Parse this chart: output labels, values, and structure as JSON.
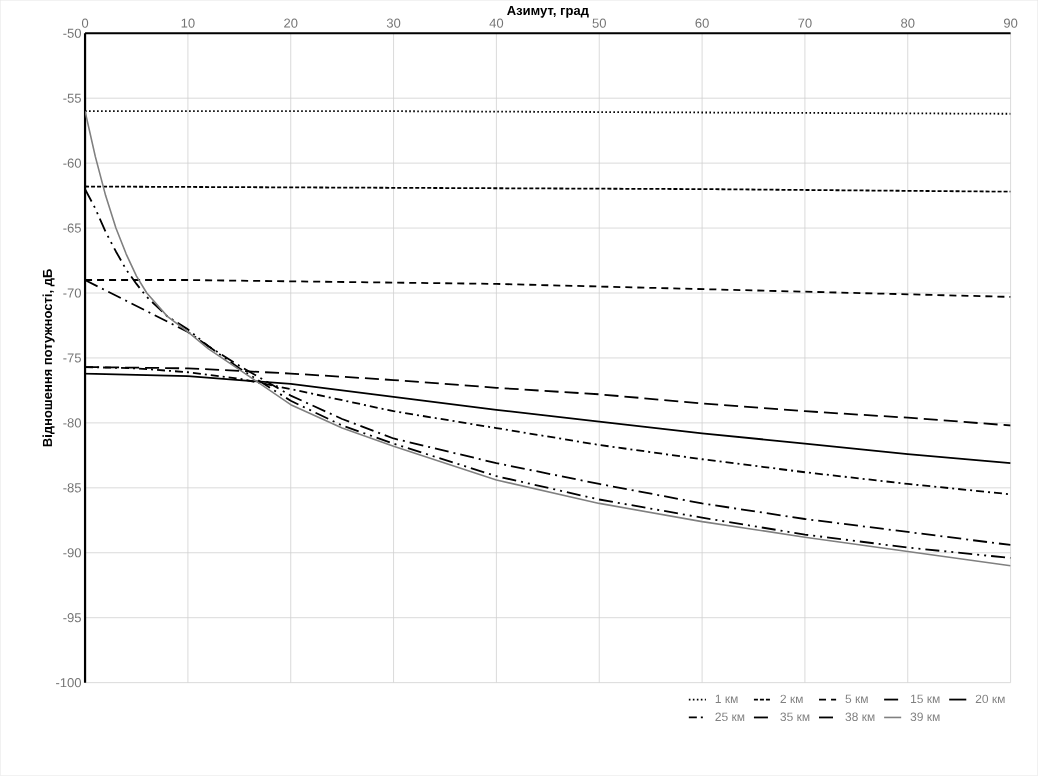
{
  "chart_data": {
    "type": "line",
    "xlabel": "Азимут, град",
    "ylabel": "Відношення потужності, дБ",
    "xlim": [
      0,
      90
    ],
    "ylim": [
      -100,
      -50
    ],
    "xticks": [
      0,
      10,
      20,
      30,
      40,
      50,
      60,
      70,
      80,
      90
    ],
    "yticks": [
      -100,
      -95,
      -90,
      -85,
      -80,
      -75,
      -70,
      -65,
      -60,
      -55,
      -50
    ],
    "grid": true,
    "legend": "bottom",
    "marker": "none",
    "series": [
      {
        "name": "1 км",
        "color": "#000000",
        "line_style": "dotted",
        "x": [
          0,
          30,
          60,
          90
        ],
        "values": [
          -56.0,
          -56.0,
          -56.1,
          -56.2
        ]
      },
      {
        "name": "2 км",
        "color": "#000000",
        "line_style": "dashed",
        "x": [
          0,
          30,
          60,
          90
        ],
        "values": [
          -61.8,
          -61.9,
          -62.0,
          -62.2
        ]
      },
      {
        "name": "5 км",
        "color": "#000000",
        "line_style": "mediumdash",
        "x": [
          0,
          10,
          20,
          30,
          40,
          50,
          60,
          70,
          80,
          90
        ],
        "values": [
          -69.0,
          -69.0,
          -69.1,
          -69.2,
          -69.3,
          -69.5,
          -69.7,
          -69.9,
          -70.1,
          -70.3
        ]
      },
      {
        "name": "15 км",
        "color": "#000000",
        "line_style": "longdash",
        "x": [
          0,
          10,
          20,
          30,
          40,
          50,
          60,
          70,
          80,
          90
        ],
        "values": [
          -75.7,
          -75.8,
          -76.2,
          -76.7,
          -77.3,
          -77.8,
          -78.5,
          -79.1,
          -79.6,
          -80.2
        ]
      },
      {
        "name": "20 км",
        "color": "#000000",
        "line_style": "solid",
        "x": [
          0,
          10,
          15,
          20,
          30,
          40,
          50,
          60,
          70,
          80,
          90
        ],
        "values": [
          -76.2,
          -76.4,
          -76.7,
          -77.0,
          -78.0,
          -79.0,
          -79.9,
          -80.8,
          -81.6,
          -82.4,
          -83.1
        ]
      },
      {
        "name": "25 км",
        "color": "#000000",
        "line_style": "dashdot",
        "x": [
          0,
          5,
          10,
          15,
          20,
          30,
          40,
          50,
          60,
          70,
          80,
          90
        ],
        "values": [
          -75.7,
          -75.8,
          -76.1,
          -76.6,
          -77.4,
          -79.1,
          -80.4,
          -81.7,
          -82.8,
          -83.8,
          -84.7,
          -85.5
        ]
      },
      {
        "name": "35 км",
        "color": "#000000",
        "line_style": "longdashdot",
        "x": [
          0,
          2,
          4,
          6,
          8,
          10,
          12,
          15,
          20,
          25,
          30,
          40,
          50,
          60,
          70,
          80,
          90
        ],
        "values": [
          -69.0,
          -69.8,
          -70.6,
          -71.4,
          -72.2,
          -73.0,
          -74.1,
          -75.6,
          -77.9,
          -79.7,
          -81.2,
          -83.1,
          -84.7,
          -86.2,
          -87.4,
          -88.4,
          -89.4
        ]
      },
      {
        "name": "38 км",
        "color": "#000000",
        "line_style": "longdashdotdot",
        "x": [
          0,
          1,
          2,
          3,
          4,
          5,
          6,
          8,
          10,
          12,
          15,
          20,
          25,
          30,
          40,
          50,
          60,
          70,
          80,
          90
        ],
        "values": [
          -62.0,
          -63.5,
          -65.3,
          -66.8,
          -68.2,
          -69.3,
          -70.3,
          -71.8,
          -72.8,
          -74.1,
          -75.8,
          -78.3,
          -80.2,
          -81.6,
          -84.1,
          -85.9,
          -87.3,
          -88.6,
          -89.6,
          -90.4
        ]
      },
      {
        "name": "39 км",
        "color": "#808080",
        "line_style": "solid",
        "x": [
          0,
          1,
          2,
          3,
          4,
          5,
          6,
          8,
          10,
          12,
          15,
          20,
          25,
          30,
          40,
          50,
          60,
          70,
          80,
          90
        ],
        "values": [
          -56.0,
          -59.5,
          -62.5,
          -65.0,
          -67.0,
          -68.7,
          -70.0,
          -71.8,
          -73.0,
          -74.3,
          -75.9,
          -78.6,
          -80.4,
          -81.8,
          -84.4,
          -86.2,
          -87.6,
          -88.8,
          -89.9,
          -91.0
        ]
      }
    ]
  }
}
